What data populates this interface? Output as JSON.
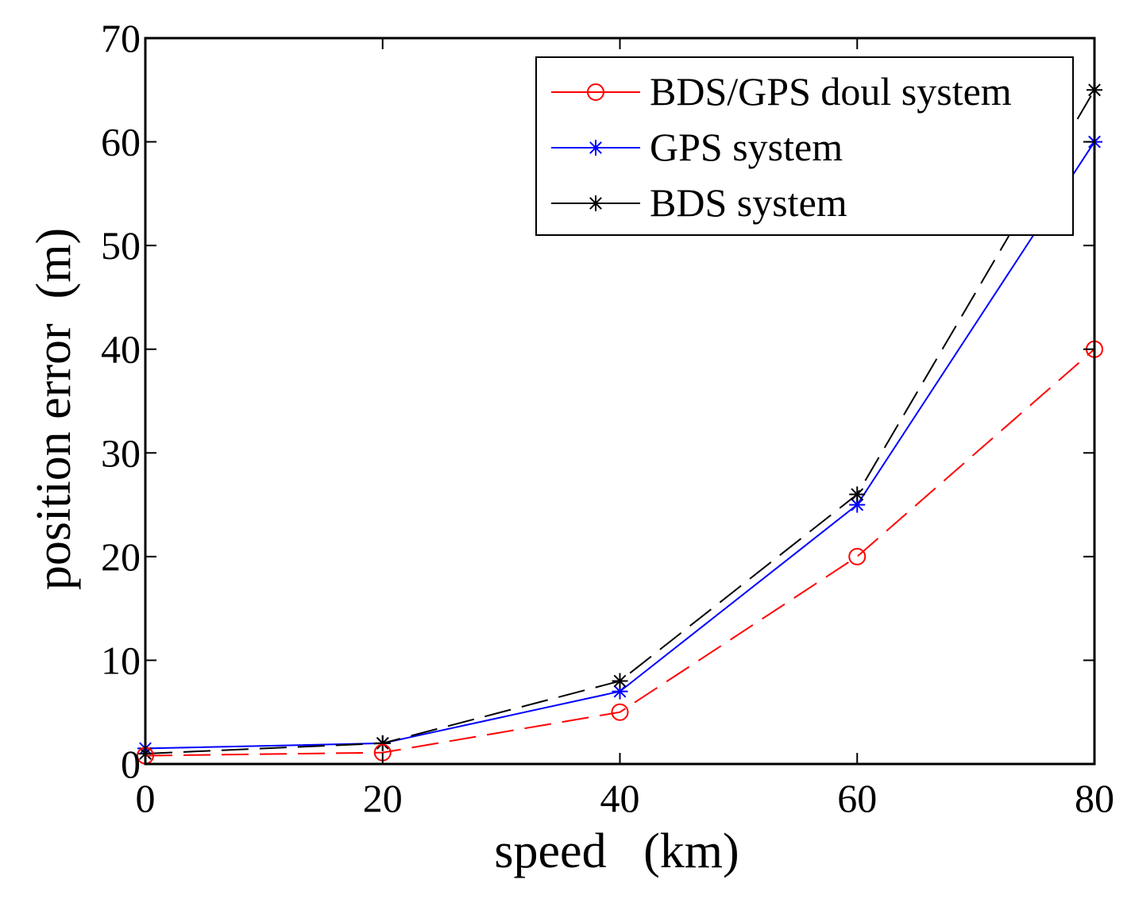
{
  "chart_data": {
    "type": "line",
    "title": "",
    "xlabel": "speed   (km)",
    "ylabel": "position error  (m)",
    "x": [
      0,
      20,
      40,
      60,
      80
    ],
    "xlim": [
      0,
      80
    ],
    "ylim": [
      0,
      70
    ],
    "xticks": [
      0,
      20,
      40,
      60,
      80
    ],
    "yticks": [
      0,
      10,
      20,
      30,
      40,
      50,
      60,
      70
    ],
    "grid": false,
    "legend_position": "top-right",
    "series": [
      {
        "name": "BDS/GPS doul system",
        "values": [
          0.8,
          1.1,
          5,
          20,
          40
        ],
        "color": "#ff0000",
        "marker": "circle",
        "line_style": "dashed"
      },
      {
        "name": "GPS system",
        "values": [
          1.5,
          2,
          7,
          25,
          60
        ],
        "color": "#0000ff",
        "marker": "star",
        "line_style": "solid"
      },
      {
        "name": "BDS system",
        "values": [
          1,
          2,
          8,
          26,
          65
        ],
        "color": "#000000",
        "marker": "star",
        "line_style": "dashed"
      }
    ]
  }
}
